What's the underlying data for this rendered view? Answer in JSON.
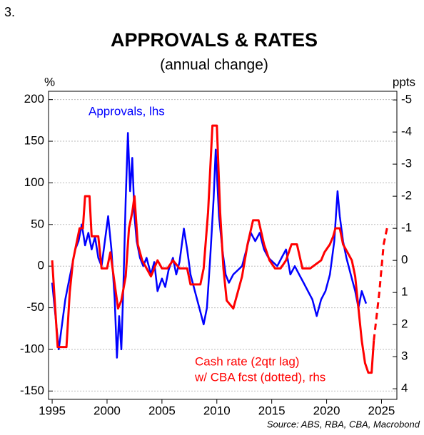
{
  "chart_data": {
    "type": "line",
    "figure_number": "3.",
    "title": "APPROVALS & RATES",
    "subtitle": "(annual change)",
    "ylabel": "%",
    "y2label": "ppts",
    "source": "Source: ABS, RBA, CBA, Macrobond",
    "xlim": [
      1994.67,
      2026.4
    ],
    "xticks": [
      1995,
      2000,
      2005,
      2010,
      2015,
      2020,
      2025
    ],
    "ylim": [
      -160,
      210
    ],
    "yticks": [
      -150,
      -100,
      -50,
      0,
      50,
      100,
      150,
      200
    ],
    "y2lim": [
      4.33,
      -5.27
    ],
    "y2ticks": [
      -5,
      -4,
      -3,
      -2,
      -1,
      0,
      1,
      2,
      3,
      4
    ],
    "grid": true,
    "series": [
      {
        "name": "Approvals, lhs",
        "color": "#0000ff",
        "axis": "y",
        "dashed": false,
        "x": [
          1995.0,
          1995.3,
          1995.6,
          1995.9,
          1996.2,
          1996.5,
          1996.8,
          1997.1,
          1997.4,
          1997.7,
          1998.0,
          1998.3,
          1998.6,
          1998.9,
          1999.2,
          1999.5,
          1999.8,
          2000.1,
          2000.4,
          2000.7,
          2000.9,
          2001.1,
          2001.3,
          2001.5,
          2001.7,
          2001.9,
          2002.1,
          2002.3,
          2002.5,
          2002.7,
          2003.0,
          2003.3,
          2003.6,
          2004.0,
          2004.3,
          2004.6,
          2005.0,
          2005.3,
          2005.6,
          2006.0,
          2006.3,
          2006.6,
          2007.0,
          2007.3,
          2007.6,
          2008.0,
          2008.4,
          2008.8,
          2009.1,
          2009.4,
          2009.7,
          2009.9,
          2010.2,
          2010.5,
          2010.8,
          2011.1,
          2011.5,
          2011.9,
          2012.3,
          2012.7,
          2013.1,
          2013.5,
          2013.9,
          2014.3,
          2014.7,
          2015.1,
          2015.5,
          2015.9,
          2016.3,
          2016.7,
          2017.1,
          2017.5,
          2017.9,
          2018.3,
          2018.7,
          2019.1,
          2019.5,
          2019.9,
          2020.3,
          2020.7,
          2021.0,
          2021.2,
          2021.5,
          2021.8,
          2022.2,
          2022.6,
          2022.9,
          2023.2,
          2023.6
        ],
        "values": [
          -20,
          -60,
          -100,
          -70,
          -40,
          -20,
          0,
          20,
          30,
          50,
          25,
          40,
          20,
          35,
          10,
          0,
          30,
          60,
          20,
          -40,
          -110,
          -60,
          -100,
          -20,
          80,
          160,
          90,
          130,
          60,
          30,
          10,
          0,
          10,
          -10,
          5,
          -30,
          -15,
          -25,
          -5,
          10,
          -10,
          5,
          45,
          20,
          -10,
          -30,
          -50,
          -70,
          -50,
          10,
          80,
          140,
          60,
          20,
          -10,
          -20,
          -10,
          -5,
          0,
          20,
          40,
          30,
          40,
          20,
          10,
          5,
          0,
          10,
          20,
          -10,
          0,
          -10,
          -20,
          -30,
          -40,
          -60,
          -40,
          -30,
          -10,
          30,
          90,
          60,
          30,
          10,
          -10,
          -30,
          -50,
          -30,
          -45
        ]
      },
      {
        "name": "Cash rate (2qtr lag)",
        "color": "#ff0000",
        "axis": "y2",
        "dashed": false,
        "x": [
          1995.0,
          1995.5,
          1996.3,
          1996.6,
          1996.9,
          1997.5,
          1997.8,
          1998.0,
          1998.4,
          1998.6,
          1999.2,
          1999.5,
          2000.0,
          2000.3,
          2000.5,
          2000.8,
          2001.0,
          2001.3,
          2001.7,
          2002.0,
          2002.3,
          2002.5,
          2002.8,
          2003.2,
          2004.0,
          2004.6,
          2005.0,
          2005.5,
          2006.0,
          2006.6,
          2007.3,
          2007.6,
          2008.5,
          2008.8,
          2009.2,
          2009.6,
          2010.0,
          2010.3,
          2010.6,
          2010.9,
          2011.5,
          2011.9,
          2012.3,
          2012.8,
          2013.3,
          2013.8,
          2014.3,
          2014.8,
          2015.3,
          2015.8,
          2016.3,
          2016.8,
          2017.3,
          2017.8,
          2018.5,
          2019.5,
          2019.8,
          2020.3,
          2020.6,
          2020.8,
          2021.2,
          2021.5,
          2021.9,
          2022.3,
          2022.6,
          2022.9,
          2023.2,
          2023.5,
          2023.8,
          2024.1,
          2024.3
        ],
        "values": [
          0,
          2.7,
          2.7,
          1.0,
          0,
          -1.0,
          -1.0,
          -2.0,
          -2.0,
          -0.75,
          -0.75,
          0.25,
          0.25,
          -0.25,
          0.25,
          1.0,
          1.5,
          1.25,
          0.5,
          -1.0,
          -1.5,
          -2.0,
          -0.5,
          0,
          0.5,
          0,
          0.25,
          0.25,
          0,
          0.25,
          0.25,
          0.75,
          0.75,
          0.25,
          -1.5,
          -4.2,
          -4.2,
          -1.5,
          0.25,
          1.25,
          1.5,
          1.0,
          0.5,
          -0.5,
          -1.25,
          -1.25,
          -0.5,
          0,
          0.25,
          0.25,
          0,
          -0.5,
          -0.5,
          0.25,
          0.25,
          0,
          -0.25,
          -0.5,
          -0.75,
          -1.0,
          -1.0,
          -0.5,
          -0.25,
          0,
          0.5,
          1.5,
          2.5,
          3.2,
          3.5,
          3.5,
          2.5
        ]
      },
      {
        "name": "w/ CBA fcst (dotted), rhs",
        "color": "#ff0000",
        "axis": "y2",
        "dashed": true,
        "x": [
          2024.3,
          2024.8,
          2025.2,
          2025.5
        ],
        "values": [
          2.5,
          1.0,
          -0.5,
          -1.0
        ]
      }
    ]
  }
}
